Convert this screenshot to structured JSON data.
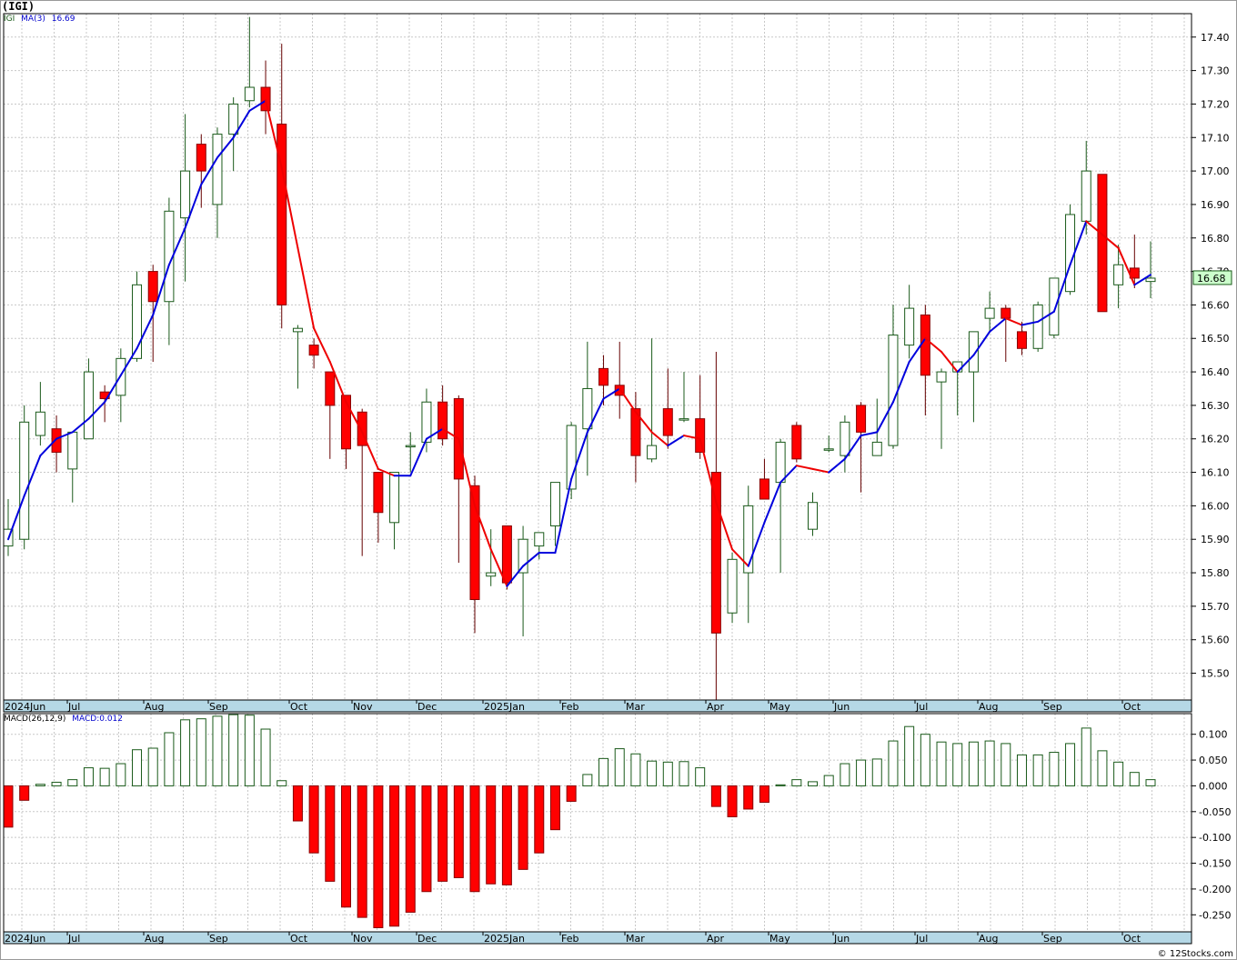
{
  "header": {
    "symbol": "(IGI)"
  },
  "legend_price": {
    "symbol": "IGI",
    "ma_label": "MA(3)",
    "ma_value": "16.69"
  },
  "legend_macd": {
    "label": "MACD(26,12,9)",
    "value": "MACD:0.012"
  },
  "last_price_tag": "16.68",
  "watermark": "© 12Stocks.com",
  "colors": {
    "up": "#ffffff",
    "up_stroke": "#1a5a1a",
    "down": "#ff0000",
    "ma_up": "#0000dd",
    "ma_down": "#ee0000",
    "macd_pos": "#ffffff",
    "macd_pos_stroke": "#1a5a1a",
    "macd_neg": "#ff0000",
    "axis_bar": "#b5d8e6",
    "tag_bg": "#ccffcc"
  },
  "x_axis_labels": [
    "2024Jun",
    "Jul",
    "Aug",
    "Sep",
    "Oct",
    "Nov",
    "Dec",
    "2025Jan",
    "Feb",
    "Mar",
    "Apr",
    "May",
    "Jun",
    "Jul",
    "Aug",
    "Sep",
    "Oct"
  ],
  "chart_data": [
    {
      "type": "candlestick",
      "title": "",
      "grid": true,
      "y_ticks": [
        "15.50",
        "15.60",
        "15.70",
        "15.80",
        "15.90",
        "16.00",
        "16.10",
        "16.20",
        "16.30",
        "16.40",
        "16.50",
        "16.60",
        "16.70",
        "16.80",
        "16.90",
        "17.00",
        "17.10",
        "17.20",
        "17.30",
        "17.40"
      ],
      "ylim": [
        15.42,
        17.47
      ],
      "candles": [
        {
          "o": 15.88,
          "h": 16.02,
          "l": 15.85,
          "c": 15.93
        },
        {
          "o": 15.9,
          "h": 16.3,
          "l": 15.87,
          "c": 16.25
        },
        {
          "o": 16.21,
          "h": 16.37,
          "l": 16.18,
          "c": 16.28
        },
        {
          "o": 16.23,
          "h": 16.27,
          "l": 16.1,
          "c": 16.16
        },
        {
          "o": 16.11,
          "h": 16.22,
          "l": 16.01,
          "c": 16.22
        },
        {
          "o": 16.2,
          "h": 16.44,
          "l": 16.2,
          "c": 16.4
        },
        {
          "o": 16.34,
          "h": 16.36,
          "l": 16.25,
          "c": 16.32
        },
        {
          "o": 16.33,
          "h": 16.47,
          "l": 16.25,
          "c": 16.44
        },
        {
          "o": 16.44,
          "h": 16.7,
          "l": 16.43,
          "c": 16.66
        },
        {
          "o": 16.7,
          "h": 16.72,
          "l": 16.43,
          "c": 16.61
        },
        {
          "o": 16.61,
          "h": 16.92,
          "l": 16.48,
          "c": 16.88
        },
        {
          "o": 16.86,
          "h": 17.17,
          "l": 16.67,
          "c": 17.0
        },
        {
          "o": 17.08,
          "h": 17.11,
          "l": 16.89,
          "c": 17.0
        },
        {
          "o": 16.9,
          "h": 17.13,
          "l": 16.8,
          "c": 17.11
        },
        {
          "o": 17.11,
          "h": 17.22,
          "l": 17.0,
          "c": 17.2
        },
        {
          "o": 17.21,
          "h": 17.46,
          "l": 17.19,
          "c": 17.25
        },
        {
          "o": 17.25,
          "h": 17.33,
          "l": 17.11,
          "c": 17.18
        },
        {
          "o": 17.14,
          "h": 17.38,
          "l": 16.53,
          "c": 16.6
        },
        {
          "o": 16.52,
          "h": 16.54,
          "l": 16.35,
          "c": 16.53
        },
        {
          "o": 16.48,
          "h": 16.5,
          "l": 16.41,
          "c": 16.45
        },
        {
          "o": 16.4,
          "h": 16.4,
          "l": 16.14,
          "c": 16.3
        },
        {
          "o": 16.33,
          "h": 16.33,
          "l": 16.11,
          "c": 16.17
        },
        {
          "o": 16.28,
          "h": 16.29,
          "l": 15.85,
          "c": 16.18
        },
        {
          "o": 16.1,
          "h": 16.1,
          "l": 15.89,
          "c": 15.98
        },
        {
          "o": 15.95,
          "h": 16.1,
          "l": 15.87,
          "c": 16.1
        },
        {
          "o": 16.18,
          "h": 16.22,
          "l": 16.1,
          "c": 16.18
        },
        {
          "o": 16.19,
          "h": 16.35,
          "l": 16.16,
          "c": 16.31
        },
        {
          "o": 16.31,
          "h": 16.36,
          "l": 16.18,
          "c": 16.2
        },
        {
          "o": 16.32,
          "h": 16.33,
          "l": 15.83,
          "c": 16.08
        },
        {
          "o": 16.06,
          "h": 16.09,
          "l": 15.62,
          "c": 15.72
        },
        {
          "o": 15.79,
          "h": 15.93,
          "l": 15.76,
          "c": 15.8
        },
        {
          "o": 15.94,
          "h": 15.94,
          "l": 15.75,
          "c": 15.77
        },
        {
          "o": 15.8,
          "h": 15.94,
          "l": 15.61,
          "c": 15.9
        },
        {
          "o": 15.88,
          "h": 15.92,
          "l": 15.84,
          "c": 15.92
        },
        {
          "o": 15.94,
          "h": 16.06,
          "l": 15.88,
          "c": 16.07
        },
        {
          "o": 16.05,
          "h": 16.25,
          "l": 16.02,
          "c": 16.24
        },
        {
          "o": 16.23,
          "h": 16.49,
          "l": 16.09,
          "c": 16.35
        },
        {
          "o": 16.41,
          "h": 16.45,
          "l": 16.3,
          "c": 16.36
        },
        {
          "o": 16.36,
          "h": 16.49,
          "l": 16.26,
          "c": 16.33
        },
        {
          "o": 16.29,
          "h": 16.34,
          "l": 16.07,
          "c": 16.15
        },
        {
          "o": 16.14,
          "h": 16.5,
          "l": 16.13,
          "c": 16.18
        },
        {
          "o": 16.29,
          "h": 16.41,
          "l": 16.17,
          "c": 16.21
        },
        {
          "o": 16.26,
          "h": 16.4,
          "l": 16.25,
          "c": 16.26
        },
        {
          "o": 16.26,
          "h": 16.39,
          "l": 16.14,
          "c": 16.16
        },
        {
          "o": 16.1,
          "h": 16.46,
          "l": 15.42,
          "c": 15.62
        },
        {
          "o": 15.68,
          "h": 15.86,
          "l": 15.65,
          "c": 15.84
        },
        {
          "o": 15.8,
          "h": 16.06,
          "l": 15.65,
          "c": 16.0
        },
        {
          "o": 16.08,
          "h": 16.14,
          "l": 16.03,
          "c": 16.02
        },
        {
          "o": 16.07,
          "h": 16.2,
          "l": 15.8,
          "c": 16.19
        },
        {
          "o": 16.24,
          "h": 16.25,
          "l": 16.13,
          "c": 16.14
        },
        {
          "o": 15.93,
          "h": 16.04,
          "l": 15.91,
          "c": 16.01
        },
        {
          "o": 16.17,
          "h": 16.21,
          "l": 16.16,
          "c": 16.17
        },
        {
          "o": 16.15,
          "h": 16.27,
          "l": 16.1,
          "c": 16.25
        },
        {
          "o": 16.3,
          "h": 16.31,
          "l": 16.04,
          "c": 16.22
        },
        {
          "o": 16.15,
          "h": 16.32,
          "l": 16.15,
          "c": 16.19
        },
        {
          "o": 16.18,
          "h": 16.6,
          "l": 16.17,
          "c": 16.51
        },
        {
          "o": 16.48,
          "h": 16.66,
          "l": 16.44,
          "c": 16.59
        },
        {
          "o": 16.57,
          "h": 16.6,
          "l": 16.27,
          "c": 16.39
        },
        {
          "o": 16.37,
          "h": 16.41,
          "l": 16.17,
          "c": 16.4
        },
        {
          "o": 16.4,
          "h": 16.43,
          "l": 16.27,
          "c": 16.43
        },
        {
          "o": 16.4,
          "h": 16.52,
          "l": 16.25,
          "c": 16.52
        },
        {
          "o": 16.56,
          "h": 16.64,
          "l": 16.52,
          "c": 16.59
        },
        {
          "o": 16.59,
          "h": 16.6,
          "l": 16.43,
          "c": 16.56
        },
        {
          "o": 16.52,
          "h": 16.55,
          "l": 16.45,
          "c": 16.47
        },
        {
          "o": 16.47,
          "h": 16.61,
          "l": 16.46,
          "c": 16.6
        },
        {
          "o": 16.51,
          "h": 16.68,
          "l": 16.5,
          "c": 16.68
        },
        {
          "o": 16.64,
          "h": 16.9,
          "l": 16.63,
          "c": 16.87
        },
        {
          "o": 16.85,
          "h": 17.09,
          "l": 16.81,
          "c": 17.0
        },
        {
          "o": 16.99,
          "h": 16.99,
          "l": 16.58,
          "c": 16.58
        },
        {
          "o": 16.66,
          "h": 16.78,
          "l": 16.59,
          "c": 16.72
        },
        {
          "o": 16.71,
          "h": 16.81,
          "l": 16.65,
          "c": 16.68
        },
        {
          "o": 16.67,
          "h": 16.79,
          "l": 16.62,
          "c": 16.68
        }
      ],
      "ma3": [
        15.9,
        16.03,
        16.15,
        16.2,
        16.22,
        16.26,
        16.31,
        16.39,
        16.47,
        16.57,
        16.72,
        16.83,
        16.96,
        17.04,
        17.1,
        17.18,
        17.21,
        17.01,
        16.77,
        16.53,
        16.43,
        16.31,
        16.22,
        16.11,
        16.09,
        16.09,
        16.2,
        16.23,
        16.2,
        16.0,
        15.87,
        15.76,
        15.82,
        15.86,
        15.86,
        16.08,
        16.22,
        16.32,
        16.35,
        16.28,
        16.22,
        16.18,
        16.21,
        16.2,
        16.01,
        15.87,
        15.82,
        15.95,
        16.07,
        16.12,
        16.11,
        16.1,
        16.14,
        16.21,
        16.22,
        16.31,
        16.43,
        16.5,
        16.46,
        16.4,
        16.45,
        16.52,
        16.56,
        16.54,
        16.55,
        16.58,
        16.72,
        16.85,
        16.81,
        16.77,
        16.66,
        16.69
      ]
    },
    {
      "type": "bar",
      "title": "",
      "grid": true,
      "y_ticks": [
        "-0.250",
        "-0.200",
        "-0.150",
        "-0.100",
        "-0.050",
        "0.000",
        "0.050",
        "0.100"
      ],
      "ylim": [
        -0.283,
        0.14
      ],
      "values": [
        -0.08,
        -0.028,
        0.003,
        0.007,
        0.012,
        0.035,
        0.034,
        0.043,
        0.07,
        0.073,
        0.103,
        0.128,
        0.13,
        0.135,
        0.138,
        0.137,
        0.11,
        0.01,
        -0.068,
        -0.13,
        -0.185,
        -0.235,
        -0.255,
        -0.275,
        -0.272,
        -0.245,
        -0.205,
        -0.185,
        -0.178,
        -0.205,
        -0.19,
        -0.192,
        -0.162,
        -0.13,
        -0.085,
        -0.03,
        0.022,
        0.053,
        0.072,
        0.062,
        0.048,
        0.046,
        0.047,
        0.035,
        -0.04,
        -0.06,
        -0.045,
        -0.032,
        0.002,
        0.012,
        0.008,
        0.02,
        0.043,
        0.05,
        0.052,
        0.087,
        0.115,
        0.1,
        0.085,
        0.082,
        0.085,
        0.087,
        0.082,
        0.06,
        0.06,
        0.065,
        0.082,
        0.112,
        0.068,
        0.046,
        0.026,
        0.012
      ]
    }
  ]
}
